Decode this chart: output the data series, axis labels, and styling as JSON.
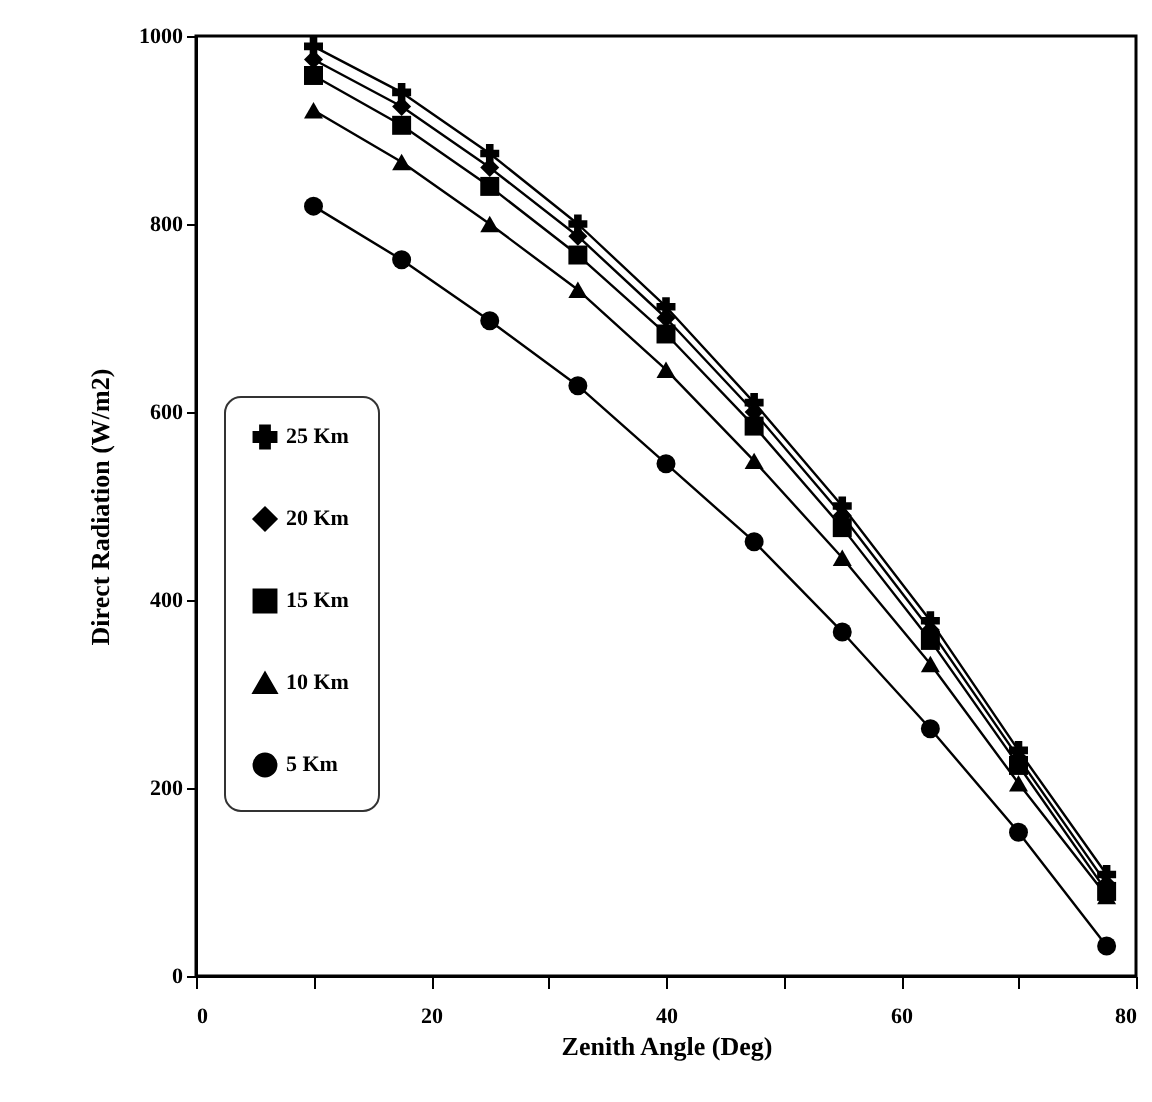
{
  "chart_data": {
    "type": "line",
    "xlabel": "Zenith Angle (Deg)",
    "ylabel": "Direct Radiation (W/m2)",
    "x": [
      10,
      17.5,
      25,
      32.5,
      40,
      47.5,
      55,
      62.5,
      70,
      77.5
    ],
    "xlim": [
      0,
      80
    ],
    "xticks": [
      0,
      {
        "value": 10,
        "label": null
      },
      20,
      {
        "value": 30,
        "label": null
      },
      40,
      {
        "value": 50,
        "label": null
      },
      60,
      {
        "value": 70,
        "label": null
      },
      80
    ],
    "ylim": [
      0,
      1000
    ],
    "yticks": [
      0,
      200,
      400,
      600,
      800,
      1000
    ],
    "legend": "left",
    "grid": false,
    "series": [
      {
        "name": "25 Km",
        "color": "#000000",
        "marker": "cross",
        "values": [
          989,
          940,
          875,
          800,
          712,
          610,
          500,
          378,
          240,
          108
        ]
      },
      {
        "name": "20 Km",
        "color": "#000000",
        "marker": "diamond",
        "values": [
          975,
          925,
          860,
          787,
          700,
          600,
          490,
          368,
          232,
          98
        ]
      },
      {
        "name": "15 Km",
        "color": "#000000",
        "marker": "square",
        "values": [
          958,
          905,
          840,
          767,
          683,
          585,
          477,
          357,
          224,
          90
        ]
      },
      {
        "name": "10 Km",
        "color": "#000000",
        "marker": "triangle",
        "values": [
          921,
          866,
          800,
          730,
          645,
          548,
          445,
          332,
          205,
          85
        ]
      },
      {
        "name": "5 Km",
        "color": "#000000",
        "marker": "circle",
        "values": [
          819,
          762,
          697,
          628,
          545,
          462,
          366,
          263,
          153,
          32
        ]
      }
    ]
  }
}
